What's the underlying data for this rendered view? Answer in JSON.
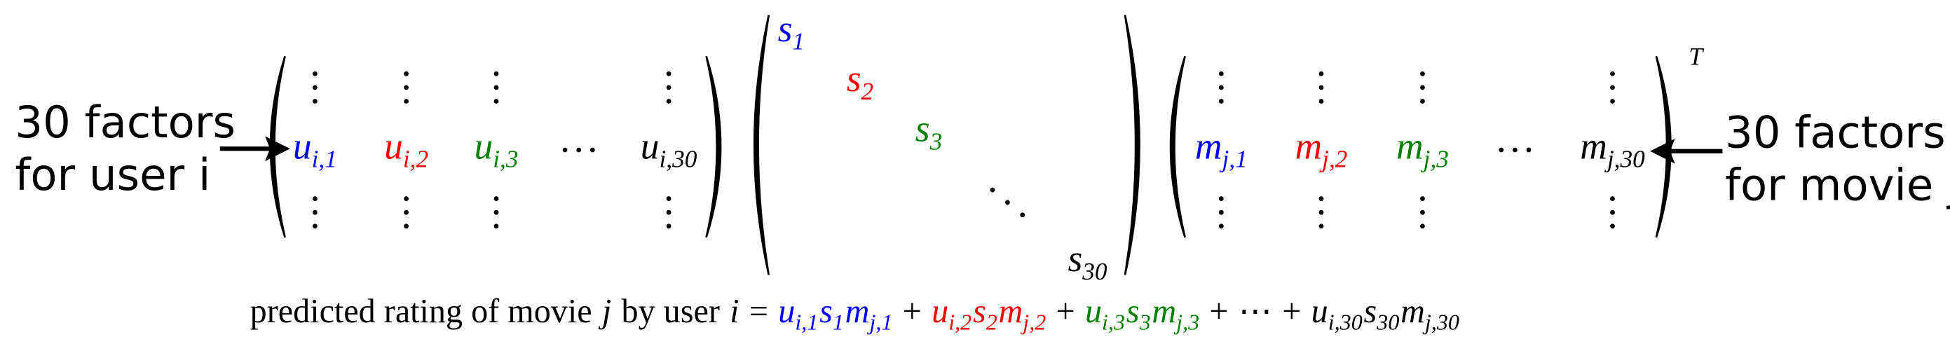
{
  "left_label": [
    "30 factors",
    "for user i"
  ],
  "right_label": [
    "30 factors",
    "for movie j"
  ],
  "user_row": [
    {
      "symbol": "u",
      "subscript": "i,1",
      "color": "#0000ff"
    },
    {
      "symbol": "u",
      "subscript": "i,2",
      "color": "#ff0000"
    },
    {
      "symbol": "u",
      "subscript": "i,3",
      "color": "#008000"
    },
    {
      "symbol": "u",
      "subscript": "i,30",
      "color": "#000000"
    }
  ],
  "singular_values": [
    {
      "symbol": "s",
      "subscript": "1",
      "color": "#0000ff"
    },
    {
      "symbol": "s",
      "subscript": "2",
      "color": "#ff0000"
    },
    {
      "symbol": "s",
      "subscript": "3",
      "color": "#008000"
    },
    {
      "symbol": "s",
      "subscript": "30",
      "color": "#000000"
    }
  ],
  "movie_row": [
    {
      "symbol": "m",
      "subscript": "j,1",
      "color": "#0000ff"
    },
    {
      "symbol": "m",
      "subscript": "j,2",
      "color": "#ff0000"
    },
    {
      "symbol": "m",
      "subscript": "j,3",
      "color": "#008000"
    },
    {
      "symbol": "m",
      "subscript": "j,30",
      "color": "#000000"
    }
  ],
  "transpose": "T",
  "formula": [
    {
      "text": "predicted rating of movie"
    },
    {
      "text": "j",
      "italic": true
    },
    {
      "text": "by user"
    },
    {
      "text": "i",
      "italic": true
    },
    {
      "text": "="
    },
    {
      "symbol": "u",
      "subscript": "i,1",
      "color": "#0000ff"
    },
    {
      "symbol": "s",
      "subscript": "1",
      "color": "#0000ff"
    },
    {
      "symbol": "m",
      "subscript": "j,1",
      "color": "#0000ff"
    },
    {
      "text": "+"
    },
    {
      "symbol": "u",
      "subscript": "i,2",
      "color": "#ff0000"
    },
    {
      "symbol": "s",
      "subscript": "2",
      "color": "#ff0000"
    },
    {
      "symbol": "m",
      "subscript": "j,2",
      "color": "#ff0000"
    },
    {
      "text": "+"
    },
    {
      "symbol": "u",
      "subscript": "i,3",
      "color": "#008000"
    },
    {
      "symbol": "s",
      "subscript": "3",
      "color": "#008000"
    },
    {
      "symbol": "m",
      "subscript": "j,3",
      "color": "#008000"
    },
    {
      "text": "+"
    },
    {
      "text": "⋯"
    },
    {
      "text": "+"
    },
    {
      "symbol": "u",
      "subscript": "i,30",
      "color": "#000000"
    },
    {
      "symbol": "s",
      "subscript": "30",
      "color": "#000000"
    },
    {
      "symbol": "m",
      "subscript": "j,30",
      "color": "#000000"
    }
  ]
}
